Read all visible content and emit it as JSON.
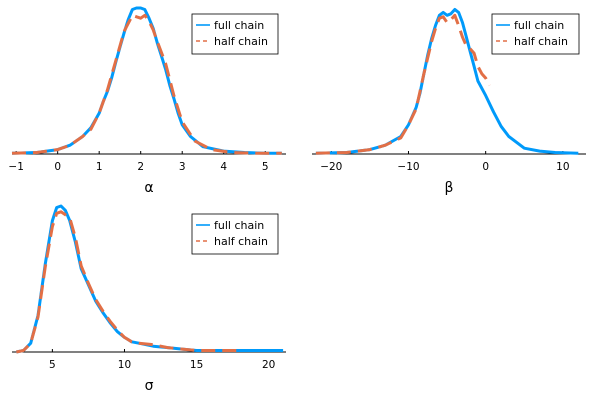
{
  "colors": {
    "full_chain": "#009AFA",
    "half_chain": "#E26F46",
    "axis": "#000000"
  },
  "chart_data": [
    {
      "type": "line",
      "title": "",
      "xlabel": "α",
      "ylabel": "",
      "xlim": [
        -1.1,
        5.5
      ],
      "ylim": [
        0,
        1.0
      ],
      "xticks": [
        -1,
        0,
        1,
        2,
        3,
        4,
        5
      ],
      "xtick_labels": [
        "−1",
        "0",
        "1",
        "2",
        "3",
        "4",
        "5"
      ],
      "legend": "top-right",
      "grid": false,
      "series": [
        {
          "name": "full chain",
          "style": "solid",
          "x": [
            -1.1,
            -0.5,
            0,
            0.3,
            0.6,
            0.8,
            1.0,
            1.1,
            1.2,
            1.3,
            1.4,
            1.5,
            1.6,
            1.7,
            1.8,
            1.9,
            2.0,
            2.1,
            2.2,
            2.3,
            2.4,
            2.5,
            2.6,
            2.7,
            2.8,
            2.9,
            3.0,
            3.2,
            3.5,
            4.0,
            4.5,
            5.0,
            5.4
          ],
          "y": [
            0.005,
            0.01,
            0.03,
            0.06,
            0.12,
            0.18,
            0.28,
            0.36,
            0.43,
            0.52,
            0.63,
            0.73,
            0.83,
            0.92,
            0.99,
            1.0,
            1.0,
            0.99,
            0.93,
            0.86,
            0.76,
            0.67,
            0.58,
            0.47,
            0.38,
            0.28,
            0.2,
            0.12,
            0.05,
            0.02,
            0.01,
            0.005,
            0.005
          ]
        },
        {
          "name": "half chain",
          "style": "dashed",
          "x": [
            -1.1,
            -0.5,
            0,
            0.3,
            0.6,
            0.8,
            1.0,
            1.2,
            1.4,
            1.6,
            1.8,
            1.9,
            2.0,
            2.1,
            2.2,
            2.3,
            2.4,
            2.6,
            2.8,
            3.0,
            3.3,
            3.7,
            4.2,
            4.8,
            5.4
          ],
          "y": [
            0.005,
            0.01,
            0.03,
            0.06,
            0.12,
            0.17,
            0.28,
            0.44,
            0.64,
            0.84,
            0.95,
            0.94,
            0.93,
            0.95,
            0.91,
            0.85,
            0.77,
            0.62,
            0.4,
            0.22,
            0.09,
            0.03,
            0.01,
            0.005,
            0.005
          ]
        }
      ]
    },
    {
      "type": "line",
      "title": "",
      "xlabel": "β",
      "ylabel": "",
      "xlim": [
        -22.5,
        13
      ],
      "ylim": [
        0,
        1.0
      ],
      "xticks": [
        -20,
        -10,
        0,
        10
      ],
      "xtick_labels": [
        "−20",
        "−10",
        "0",
        "10"
      ],
      "legend": "top-right",
      "grid": false,
      "series": [
        {
          "name": "full chain",
          "style": "solid",
          "x": [
            -22,
            -18,
            -15,
            -13,
            -11,
            -10,
            -9,
            -8.5,
            -8,
            -7.5,
            -7,
            -6.5,
            -6,
            -5.5,
            -5,
            -4.5,
            -4,
            -3.5,
            -3,
            -2.5,
            -2,
            -1.5,
            -1,
            0,
            1,
            2,
            3,
            5,
            7,
            9,
            12
          ],
          "y": [
            0.005,
            0.01,
            0.03,
            0.06,
            0.12,
            0.2,
            0.32,
            0.42,
            0.55,
            0.68,
            0.79,
            0.88,
            0.95,
            0.97,
            0.95,
            0.96,
            0.99,
            0.97,
            0.9,
            0.8,
            0.7,
            0.6,
            0.5,
            0.4,
            0.29,
            0.19,
            0.12,
            0.04,
            0.02,
            0.01,
            0.005
          ]
        },
        {
          "name": "half chain",
          "style": "dashed",
          "x": [
            -22,
            -18,
            -15,
            -13,
            -11,
            -10,
            -9,
            -8,
            -7,
            -6.5,
            -6,
            -5.5,
            -5,
            -4.5,
            -4,
            -3.5,
            -3,
            -2.5,
            -2,
            -1.5,
            -1,
            -0.5,
            0,
            0.5
          ],
          "y": [
            0.005,
            0.01,
            0.03,
            0.06,
            0.11,
            0.2,
            0.31,
            0.55,
            0.77,
            0.86,
            0.93,
            0.94,
            0.9,
            0.92,
            0.95,
            0.88,
            0.8,
            0.74,
            0.72,
            0.69,
            0.6,
            0.55,
            0.52,
            0.47
          ]
        }
      ]
    },
    {
      "type": "line",
      "title": "",
      "xlabel": "σ",
      "ylabel": "",
      "xlim": [
        2.2,
        21.2
      ],
      "ylim": [
        0,
        1.0
      ],
      "xticks": [
        5,
        10,
        15,
        20
      ],
      "xtick_labels": [
        "5",
        "10",
        "15",
        "20"
      ],
      "legend": "top-right",
      "grid": false,
      "series": [
        {
          "name": "full chain",
          "style": "solid",
          "x": [
            2.5,
            3.0,
            3.5,
            4.0,
            4.5,
            5.0,
            5.3,
            5.6,
            5.9,
            6.2,
            6.6,
            7.0,
            7.5,
            8.0,
            8.5,
            9.0,
            9.5,
            10.0,
            10.5,
            11.0,
            12.0,
            13.0,
            14.0,
            15.0,
            16.0,
            18.0,
            21.0
          ],
          "y": [
            0.0,
            0.01,
            0.06,
            0.25,
            0.6,
            0.9,
            0.99,
            1.0,
            0.97,
            0.9,
            0.75,
            0.57,
            0.46,
            0.35,
            0.27,
            0.2,
            0.14,
            0.1,
            0.07,
            0.06,
            0.04,
            0.03,
            0.02,
            0.01,
            0.01,
            0.01,
            0.01
          ]
        },
        {
          "name": "half chain",
          "style": "dashed",
          "x": [
            2.5,
            3.0,
            3.5,
            4.0,
            4.5,
            5.0,
            5.3,
            5.6,
            5.9,
            6.2,
            6.6,
            7.0,
            7.5,
            8.0,
            8.5,
            9.0,
            9.5,
            10.0,
            10.5,
            11.0,
            12.0,
            13.0,
            14.0,
            15.0,
            16.0,
            18.0
          ],
          "y": [
            0.0,
            0.01,
            0.06,
            0.24,
            0.58,
            0.86,
            0.95,
            0.96,
            0.94,
            0.92,
            0.78,
            0.59,
            0.47,
            0.36,
            0.28,
            0.21,
            0.15,
            0.1,
            0.07,
            0.06,
            0.05,
            0.03,
            0.02,
            0.01,
            0.01,
            0.01
          ]
        }
      ]
    }
  ]
}
